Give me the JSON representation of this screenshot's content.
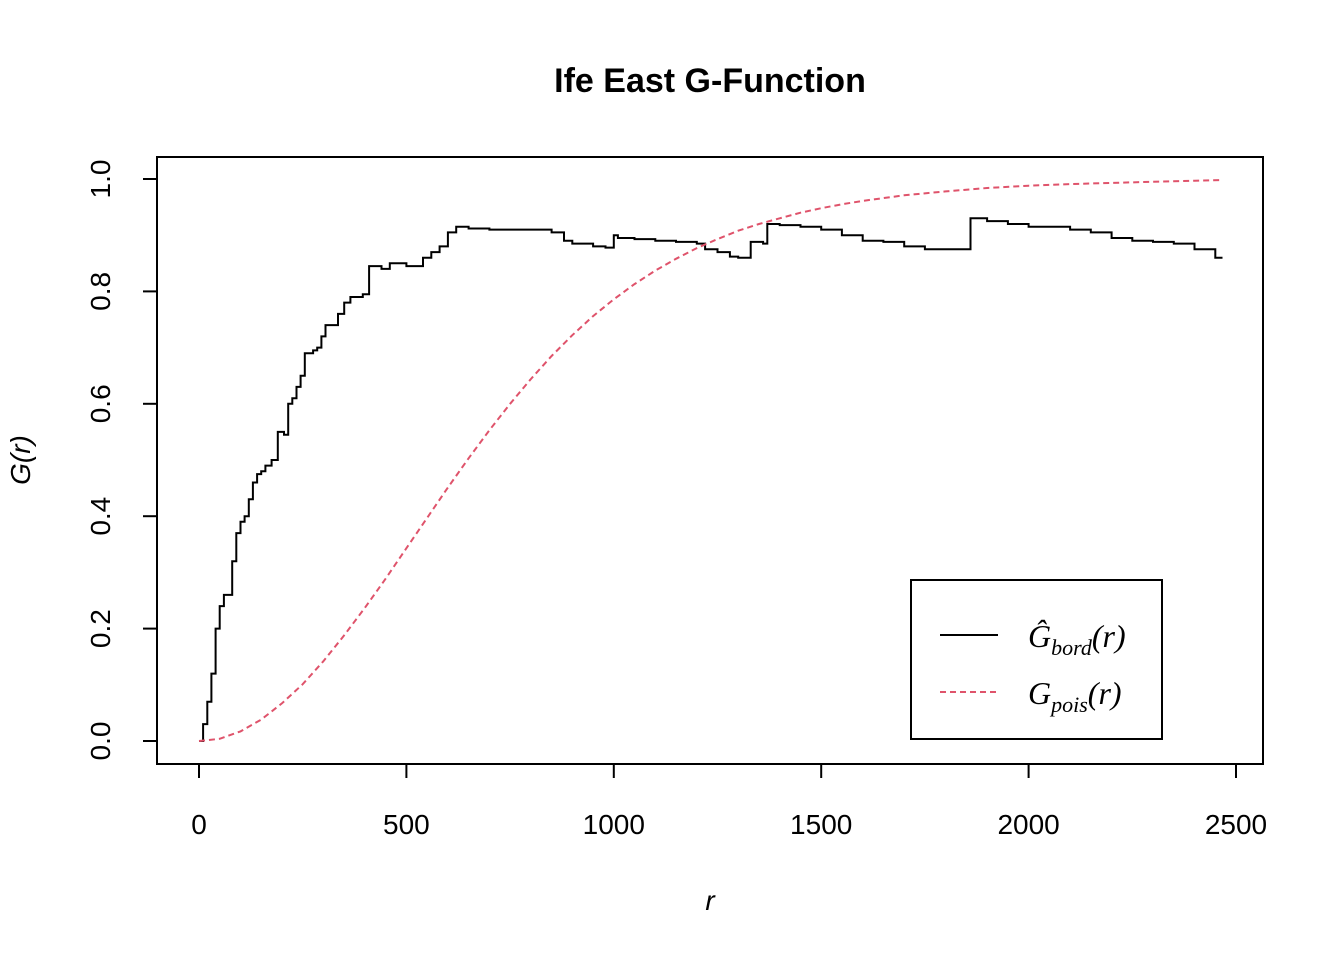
{
  "chart_data": {
    "type": "line",
    "title": "Ife East G-Function",
    "xlabel": "r",
    "ylabel": "G(r)",
    "xlim": [
      0,
      2500
    ],
    "ylim": [
      0,
      1.0
    ],
    "xticks": [
      0,
      500,
      1000,
      1500,
      2000,
      2500
    ],
    "yticks": [
      0.0,
      0.2,
      0.4,
      0.6,
      0.8,
      1.0
    ],
    "xtick_labels": [
      "0",
      "500",
      "1000",
      "1500",
      "2000",
      "2500"
    ],
    "ytick_labels": [
      "0.0",
      "0.2",
      "0.4",
      "0.6",
      "0.8",
      "1.0"
    ],
    "legend_position": "bottom-right",
    "grid": false,
    "series": [
      {
        "name": "Ĝbord(r)",
        "label_main": "Ĝ",
        "label_sub": "bord",
        "label_tail": "(r)",
        "color": "#000000",
        "style": "solid",
        "step": true,
        "x": [
          0,
          10,
          20,
          30,
          40,
          50,
          60,
          70,
          80,
          90,
          100,
          110,
          120,
          130,
          140,
          150,
          160,
          175,
          190,
          205,
          215,
          225,
          235,
          245,
          255,
          265,
          275,
          285,
          295,
          305,
          320,
          335,
          350,
          365,
          380,
          395,
          410,
          425,
          440,
          460,
          480,
          500,
          520,
          540,
          560,
          580,
          600,
          620,
          650,
          700,
          800,
          850,
          880,
          900,
          950,
          980,
          1000,
          1010,
          1050,
          1100,
          1150,
          1200,
          1220,
          1250,
          1280,
          1300,
          1310,
          1330,
          1360,
          1370,
          1400,
          1450,
          1500,
          1550,
          1600,
          1650,
          1700,
          1750,
          1800,
          1850,
          1860,
          1900,
          1950,
          2000,
          2050,
          2100,
          2150,
          2200,
          2250,
          2300,
          2350,
          2400,
          2450,
          2465
        ],
        "y": [
          0.0,
          0.03,
          0.07,
          0.12,
          0.2,
          0.24,
          0.26,
          0.26,
          0.32,
          0.37,
          0.39,
          0.4,
          0.43,
          0.46,
          0.475,
          0.48,
          0.49,
          0.5,
          0.55,
          0.545,
          0.6,
          0.61,
          0.63,
          0.65,
          0.69,
          0.69,
          0.695,
          0.7,
          0.72,
          0.74,
          0.74,
          0.76,
          0.78,
          0.79,
          0.79,
          0.795,
          0.845,
          0.845,
          0.84,
          0.85,
          0.85,
          0.845,
          0.845,
          0.86,
          0.87,
          0.88,
          0.905,
          0.915,
          0.912,
          0.91,
          0.91,
          0.905,
          0.89,
          0.885,
          0.88,
          0.878,
          0.9,
          0.895,
          0.893,
          0.89,
          0.888,
          0.885,
          0.875,
          0.87,
          0.862,
          0.86,
          0.86,
          0.888,
          0.885,
          0.92,
          0.918,
          0.915,
          0.91,
          0.9,
          0.89,
          0.888,
          0.88,
          0.875,
          0.875,
          0.875,
          0.93,
          0.925,
          0.92,
          0.915,
          0.915,
          0.91,
          0.905,
          0.895,
          0.89,
          0.888,
          0.885,
          0.875,
          0.86,
          0.858
        ]
      },
      {
        "name": "Gpois(r)",
        "label_main": "G",
        "label_sub": "pois",
        "label_tail": "(r)",
        "color": "#DF536B",
        "style": "dashed",
        "step": false,
        "x": [
          0,
          50,
          100,
          150,
          200,
          250,
          300,
          350,
          400,
          450,
          500,
          550,
          600,
          650,
          700,
          750,
          800,
          850,
          900,
          950,
          1000,
          1050,
          1100,
          1150,
          1200,
          1250,
          1300,
          1350,
          1400,
          1450,
          1500,
          1550,
          1600,
          1700,
          1800,
          1900,
          2000,
          2100,
          2200,
          2300,
          2400,
          2465
        ],
        "y": [
          0.0,
          0.004,
          0.017,
          0.038,
          0.067,
          0.101,
          0.142,
          0.188,
          0.237,
          0.289,
          0.343,
          0.397,
          0.451,
          0.503,
          0.553,
          0.6,
          0.644,
          0.685,
          0.722,
          0.756,
          0.786,
          0.813,
          0.837,
          0.858,
          0.877,
          0.893,
          0.908,
          0.92,
          0.93,
          0.94,
          0.948,
          0.955,
          0.961,
          0.971,
          0.978,
          0.984,
          0.988,
          0.991,
          0.993,
          0.995,
          0.997,
          0.998
        ]
      }
    ]
  }
}
